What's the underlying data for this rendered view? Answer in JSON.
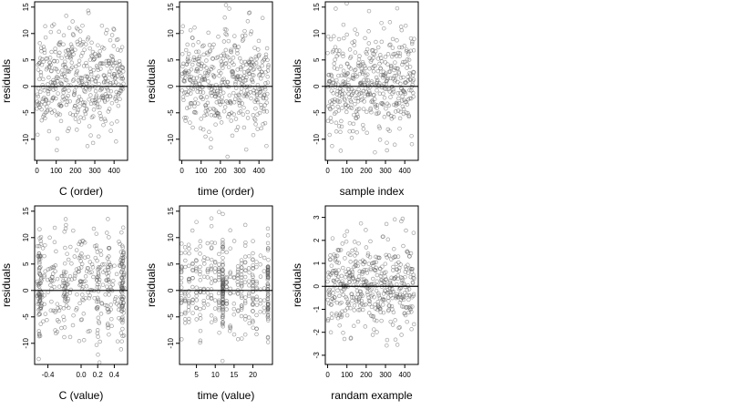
{
  "chart_data": [
    {
      "type": "scatter",
      "xlabel": "C (order)",
      "ylabel": "residuals",
      "xlim": [
        -12,
        470
      ],
      "ylim": [
        -14,
        16
      ],
      "xticks": [
        0,
        100,
        200,
        300,
        400
      ],
      "yticks": [
        -10,
        -5,
        0,
        5,
        10,
        15
      ],
      "reference_line_y": 0,
      "n_points": 450,
      "y_center": 1,
      "y_spread": 4.6,
      "seed": 11,
      "x_mode": "order"
    },
    {
      "type": "scatter",
      "xlabel": "time (order)",
      "ylabel": "residuals",
      "xlim": [
        -12,
        470
      ],
      "ylim": [
        -14,
        16
      ],
      "xticks": [
        0,
        100,
        200,
        300,
        400
      ],
      "yticks": [
        -10,
        -5,
        0,
        5,
        10,
        15
      ],
      "reference_line_y": 0,
      "n_points": 450,
      "y_center": 0.8,
      "y_spread": 4.8,
      "seed": 23,
      "x_mode": "order"
    },
    {
      "type": "scatter",
      "xlabel": "sample index",
      "ylabel": "residuals",
      "xlim": [
        -12,
        470
      ],
      "ylim": [
        -14,
        16
      ],
      "xticks": [
        0,
        100,
        200,
        300,
        400
      ],
      "yticks": [
        -10,
        -5,
        0,
        5,
        10,
        15
      ],
      "reference_line_y": 0,
      "n_points": 450,
      "y_center": 0.8,
      "y_spread": 4.8,
      "seed": 37,
      "x_mode": "order"
    },
    {
      "type": "scatter",
      "xlabel": "C (value)",
      "ylabel": "residuals",
      "xlim": [
        -0.56,
        0.56
      ],
      "ylim": [
        -14,
        16
      ],
      "xticks": [
        -0.4,
        0.0,
        0.2,
        0.4
      ],
      "xtick_labels": [
        "-0.4",
        "0.0",
        "0.2",
        "0.4"
      ],
      "yticks": [
        -10,
        -5,
        0,
        5,
        10,
        15
      ],
      "reference_line_y": 0,
      "n_points": 450,
      "y_center": 0.8,
      "y_spread": 4.8,
      "seed": 53,
      "x_mode": "clustered",
      "x_clusters": [
        -0.5,
        -0.5,
        -0.5,
        0.5,
        0.5,
        0.5,
        -0.2,
        0.0,
        0.2,
        0.33
      ]
    },
    {
      "type": "scatter",
      "xlabel": "time (value)",
      "ylabel": "residuals",
      "xlim": [
        0.5,
        25.2
      ],
      "ylim": [
        -14,
        16
      ],
      "xticks": [
        5,
        10,
        15,
        20
      ],
      "yticks": [
        -10,
        -5,
        0,
        5,
        10,
        15
      ],
      "reference_line_y": 0,
      "n_points": 450,
      "y_center": 0.8,
      "y_spread": 4.8,
      "seed": 71,
      "x_mode": "integer",
      "x_int_range": [
        1,
        24
      ],
      "x_heavy": [
        12,
        24
      ]
    },
    {
      "type": "scatter",
      "xlabel": "randam example",
      "ylabel": "residuals",
      "xlim": [
        -12,
        470
      ],
      "ylim": [
        -3.4,
        3.5
      ],
      "xticks": [
        0,
        100,
        200,
        300,
        400
      ],
      "yticks": [
        -3,
        -2,
        -1,
        0,
        1,
        2,
        3
      ],
      "reference_line_y": 0,
      "n_points": 450,
      "y_center": 0,
      "y_spread": 1,
      "seed": 97,
      "x_mode": "order"
    }
  ]
}
